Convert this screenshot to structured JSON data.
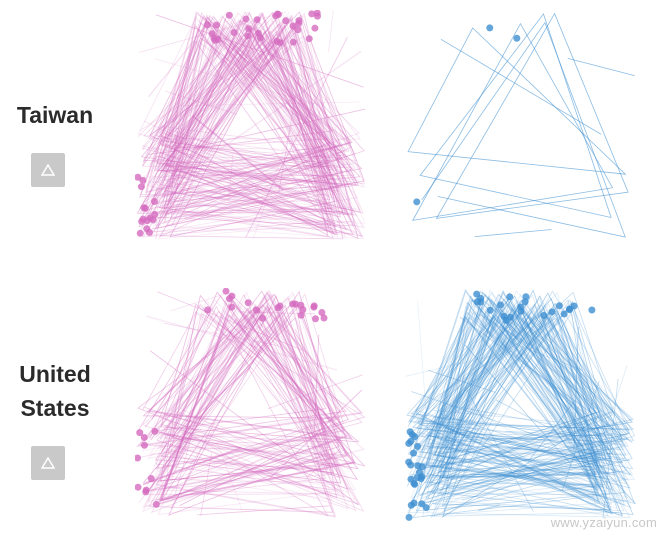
{
  "rows": [
    {
      "label_lines": [
        "Taiwan"
      ],
      "button_icon": "triangle-outline-icon"
    },
    {
      "label_lines": [
        "United",
        "States"
      ],
      "button_icon": "triangle-outline-icon"
    }
  ],
  "colors": {
    "pink": "#d46bbf",
    "blue": "#3d8fd1",
    "button": "#c9c9c9",
    "label": "#2b2b2b"
  },
  "panels": [
    {
      "id": "taiwan-pink",
      "color": "#d46bbf",
      "density": "dense"
    },
    {
      "id": "taiwan-blue",
      "color": "#3d8fd1",
      "density": "sparse"
    },
    {
      "id": "us-pink",
      "color": "#d46bbf",
      "density": "medium"
    },
    {
      "id": "us-blue",
      "color": "#3d8fd1",
      "density": "dense"
    }
  ],
  "watermark": "www.yzaiyun.com"
}
